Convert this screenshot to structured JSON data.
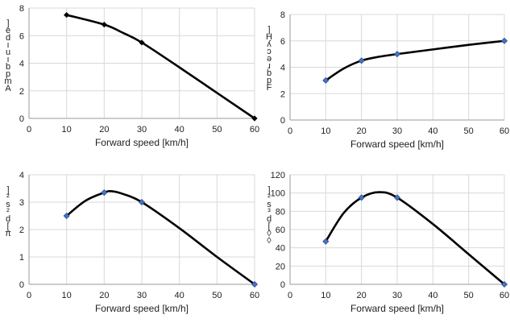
{
  "chart_data": [
    {
      "type": "line",
      "xlabel": "Forward speed [km/h]",
      "ylabel": "]edıuıbpm A",
      "xlim": [
        0,
        60
      ],
      "ylim": [
        0,
        8
      ],
      "xticks": [
        0,
        10,
        20,
        30,
        40,
        50,
        60
      ],
      "yticks": [
        0,
        2,
        4,
        6,
        8
      ],
      "series": [
        {
          "x": [
            10,
            20,
            30,
            60
          ],
          "y": [
            7.5,
            6.8,
            5.5,
            0
          ],
          "marker": "diamond",
          "marker_color": "#000000"
        }
      ],
      "curve": [
        [
          10,
          7.5
        ],
        [
          20,
          6.8
        ],
        [
          25,
          6.2
        ],
        [
          30,
          5.5
        ],
        [
          40,
          3.7
        ],
        [
          50,
          1.85
        ],
        [
          60,
          0
        ]
      ],
      "grid": true
    },
    {
      "type": "line",
      "xlabel": "Forward speed [km/h]",
      "ylabel": "]HʎɔǝɹbpF",
      "xlim": [
        0,
        60
      ],
      "ylim": [
        0,
        8
      ],
      "xticks": [
        0,
        10,
        20,
        30,
        40,
        50,
        60
      ],
      "yticks": [
        0,
        2,
        4,
        6,
        8
      ],
      "series": [
        {
          "x": [
            10,
            20,
            30,
            60
          ],
          "y": [
            3,
            4.5,
            5,
            6
          ],
          "marker": "diamond",
          "marker_color": "#4472c4"
        }
      ],
      "curve": [
        [
          10,
          3
        ],
        [
          15,
          3.9
        ],
        [
          20,
          4.5
        ],
        [
          25,
          4.8
        ],
        [
          30,
          5.0
        ],
        [
          40,
          5.35
        ],
        [
          50,
          5.7
        ],
        [
          60,
          6
        ]
      ],
      "grid": true
    },
    {
      "type": "line",
      "xlabel": "Forward speed [km/h]",
      "ylabel": "]²s²d[π",
      "xlim": [
        0,
        60
      ],
      "ylim": [
        0,
        4
      ],
      "xticks": [
        0,
        10,
        20,
        30,
        40,
        50,
        60
      ],
      "yticks": [
        0,
        1,
        2,
        3,
        4
      ],
      "series": [
        {
          "x": [
            10,
            20,
            30,
            60
          ],
          "y": [
            2.5,
            3.35,
            3.0,
            0
          ],
          "marker": "diamond",
          "marker_color": "#4472c4"
        }
      ],
      "curve": [
        [
          10,
          2.5
        ],
        [
          15,
          3.05
        ],
        [
          20,
          3.35
        ],
        [
          22,
          3.4
        ],
        [
          25,
          3.3
        ],
        [
          30,
          3.0
        ],
        [
          40,
          2.05
        ],
        [
          50,
          1.0
        ],
        [
          60,
          0
        ]
      ],
      "grid": true
    },
    {
      "type": "line",
      "xlabel": "Forward speed [km/h]",
      "ylabel": "]²s³d[◊◊",
      "xlim": [
        0,
        60
      ],
      "ylim": [
        0,
        120
      ],
      "xticks": [
        0,
        10,
        20,
        30,
        40,
        50,
        60
      ],
      "yticks": [
        0,
        20,
        40,
        60,
        80,
        100,
        120
      ],
      "series": [
        {
          "x": [
            10,
            20,
            30,
            60
          ],
          "y": [
            47,
            95,
            95,
            0
          ],
          "marker": "diamond",
          "marker_color": "#4472c4"
        }
      ],
      "curve": [
        [
          10,
          47
        ],
        [
          15,
          78
        ],
        [
          20,
          95
        ],
        [
          25,
          101
        ],
        [
          30,
          95
        ],
        [
          40,
          66
        ],
        [
          50,
          33
        ],
        [
          60,
          0
        ]
      ],
      "grid": true
    }
  ]
}
